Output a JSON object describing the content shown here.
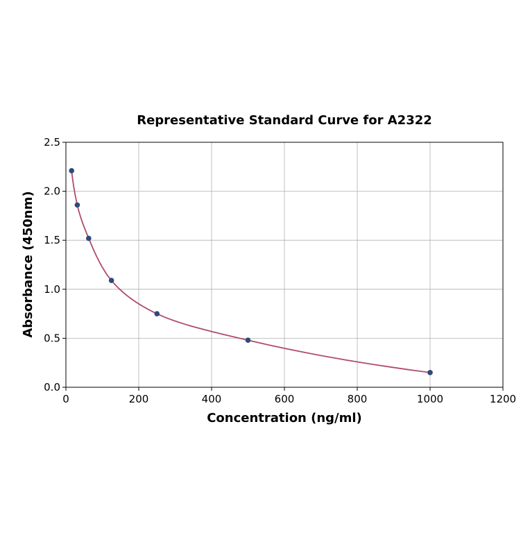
{
  "chart_data": {
    "type": "scatter",
    "title": "Representative Standard Curve for A2322",
    "xlabel": "Concentration (ng/ml)",
    "ylabel": "Absorbance (450nm)",
    "xlim": [
      0,
      1200
    ],
    "ylim": [
      0,
      2.5
    ],
    "xticks": [
      0,
      200,
      400,
      600,
      800,
      1000,
      1200
    ],
    "yticks": [
      0.0,
      0.5,
      1.0,
      1.5,
      2.0,
      2.5
    ],
    "grid": true,
    "x": [
      15.6,
      31.25,
      62.5,
      125,
      250,
      500,
      1000
    ],
    "y": [
      2.21,
      1.86,
      1.52,
      1.09,
      0.75,
      0.48,
      0.15
    ],
    "has_fit_curve": true,
    "colors": {
      "points": "#2e4a7a",
      "curve": "#b04a6e",
      "grid": "#b0b0b0"
    }
  }
}
